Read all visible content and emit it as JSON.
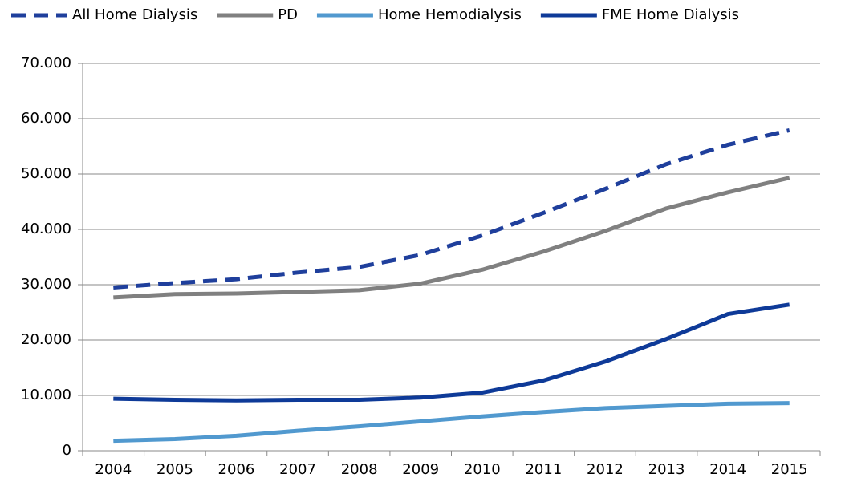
{
  "chart_data": {
    "type": "line",
    "categories": [
      "2004",
      "2005",
      "2006",
      "2007",
      "2008",
      "2009",
      "2010",
      "2011",
      "2012",
      "2013",
      "2014",
      "2015"
    ],
    "series": [
      {
        "name": "All Home Dialysis",
        "color": "#1f3f9c",
        "style": "dashed",
        "values": [
          29500,
          30300,
          31000,
          32200,
          33200,
          35400,
          38900,
          43000,
          47300,
          51800,
          55300,
          57900
        ]
      },
      {
        "name": "PD",
        "color": "#808080",
        "style": "solid",
        "values": [
          27700,
          28300,
          28400,
          28700,
          29000,
          30200,
          32700,
          36000,
          39700,
          43800,
          46700,
          49300
        ]
      },
      {
        "name": "Home Hemodialysis",
        "color": "#5199cf",
        "style": "solid",
        "values": [
          1800,
          2100,
          2700,
          3600,
          4400,
          5300,
          6200,
          7000,
          7700,
          8100,
          8500,
          8600
        ]
      },
      {
        "name": "FME Home Dialysis",
        "color": "#0e3a98",
        "style": "solid",
        "values": [
          9400,
          9200,
          9100,
          9200,
          9200,
          9600,
          10500,
          12700,
          16100,
          20200,
          24700,
          26400
        ]
      }
    ],
    "ylim": [
      0,
      70000
    ],
    "yticks": [
      0,
      {
        "value": 10000,
        "label": "10.000"
      },
      {
        "value": 20000,
        "label": "20.000"
      },
      {
        "value": 30000,
        "label": "30.000"
      },
      {
        "value": 40000,
        "label": "40.000"
      },
      {
        "value": 50000,
        "label": "50.000"
      },
      {
        "value": 60000,
        "label": "60.000"
      },
      {
        "value": 70000,
        "label": "70.000"
      }
    ],
    "grid": true,
    "legend": "top"
  }
}
